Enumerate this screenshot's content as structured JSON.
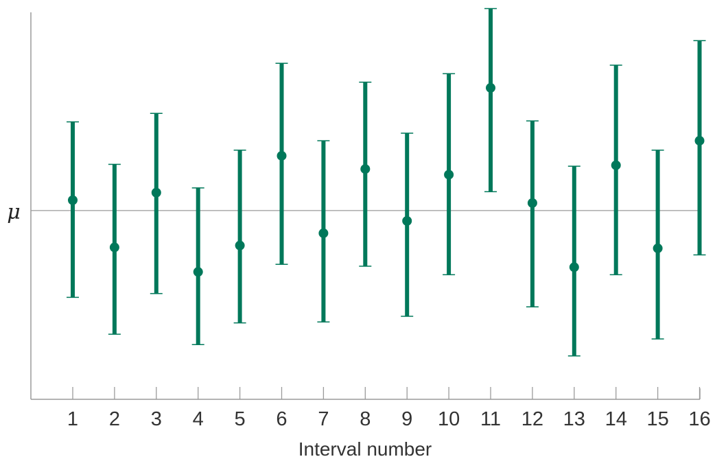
{
  "chart_data": {
    "type": "errorbar",
    "xlabel": "Interval number",
    "reference_label": "μ",
    "reference_value": 0,
    "color": "#00785a",
    "reference_color": "#9a9a9a",
    "ylim": [
      -10,
      10.5
    ],
    "x": [
      "1",
      "2",
      "3",
      "4",
      "5",
      "6",
      "7",
      "8",
      "9",
      "10",
      "11",
      "12",
      "13",
      "14",
      "15",
      "16"
    ],
    "center": [
      0.55,
      -1.95,
      0.95,
      -3.25,
      -1.85,
      2.9,
      -1.2,
      2.2,
      -0.55,
      1.9,
      6.5,
      0.4,
      -3.0,
      2.4,
      -2.0,
      3.7
    ],
    "lower": [
      -4.6,
      -6.55,
      -4.4,
      -7.1,
      -5.95,
      -2.85,
      -5.9,
      -2.95,
      -5.6,
      -3.4,
      1.0,
      -5.1,
      -7.7,
      -3.4,
      -6.8,
      -2.35
    ],
    "upper": [
      4.7,
      2.45,
      5.15,
      1.2,
      3.2,
      7.8,
      3.7,
      6.8,
      4.1,
      7.25,
      10.7,
      4.75,
      2.35,
      7.7,
      3.2,
      9.0
    ]
  }
}
